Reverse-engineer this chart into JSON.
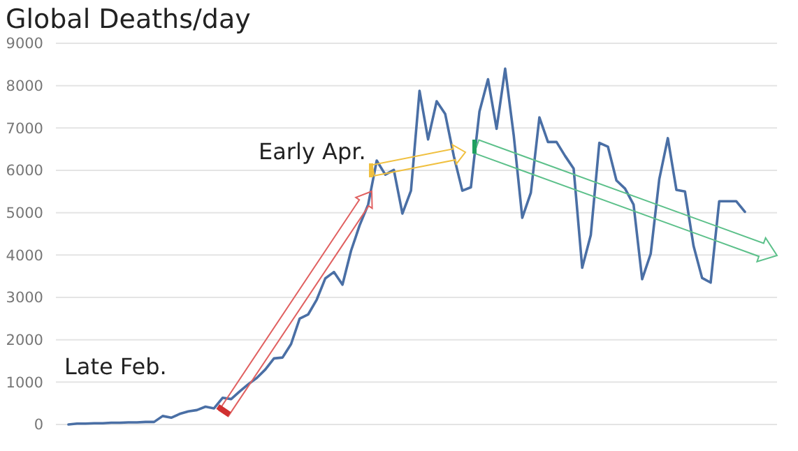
{
  "chart_data": {
    "type": "line",
    "title": "Global Deaths/day",
    "categories": [
      null,
      null,
      null,
      null,
      null,
      null,
      null,
      null,
      null,
      null,
      null,
      null,
      null,
      null,
      null,
      null,
      null,
      null,
      null,
      null,
      null,
      null,
      null,
      null,
      null,
      null,
      null,
      null,
      null,
      null,
      null,
      null,
      null,
      null,
      null,
      null,
      null,
      null,
      null,
      null,
      null,
      null,
      null,
      null,
      null,
      null,
      null,
      null,
      null,
      null,
      null,
      null,
      null,
      null,
      null,
      null,
      null,
      null,
      null,
      null,
      null,
      null,
      null,
      null,
      null,
      null,
      null,
      null,
      null,
      null,
      null,
      null,
      null,
      null,
      null,
      null,
      null,
      null,
      null,
      null
    ],
    "series": [
      {
        "color": "#4a6fa5",
        "values": [
          0,
          20,
          20,
          30,
          30,
          40,
          40,
          50,
          50,
          60,
          60,
          200,
          160,
          250,
          310,
          340,
          420,
          380,
          630,
          600,
          780,
          950,
          1100,
          1300,
          1560,
          1580,
          1900,
          2500,
          2600,
          2950,
          3450,
          3600,
          3300,
          4100,
          4700,
          5190,
          6230,
          5900,
          6010,
          4980,
          5520,
          7880,
          6730,
          7630,
          7330,
          6340,
          5520,
          5600,
          7390,
          8150,
          6980,
          8400,
          6830,
          4880,
          5470,
          7250,
          6670,
          6670,
          6340,
          6040,
          3700,
          4470,
          6650,
          6560,
          5760,
          5570,
          5190,
          3430,
          4030,
          5790,
          6760,
          5540,
          5500,
          4220,
          3460,
          3350,
          5270,
          5270,
          5270,
          5020
        ]
      }
    ],
    "ylim": [
      0,
      9000
    ],
    "yticks": [
      0,
      1000,
      2000,
      3000,
      4000,
      5000,
      6000,
      7000,
      8000,
      9000
    ],
    "grid": "y",
    "annotations": [
      "Late Feb.",
      "Early Apr."
    ]
  }
}
